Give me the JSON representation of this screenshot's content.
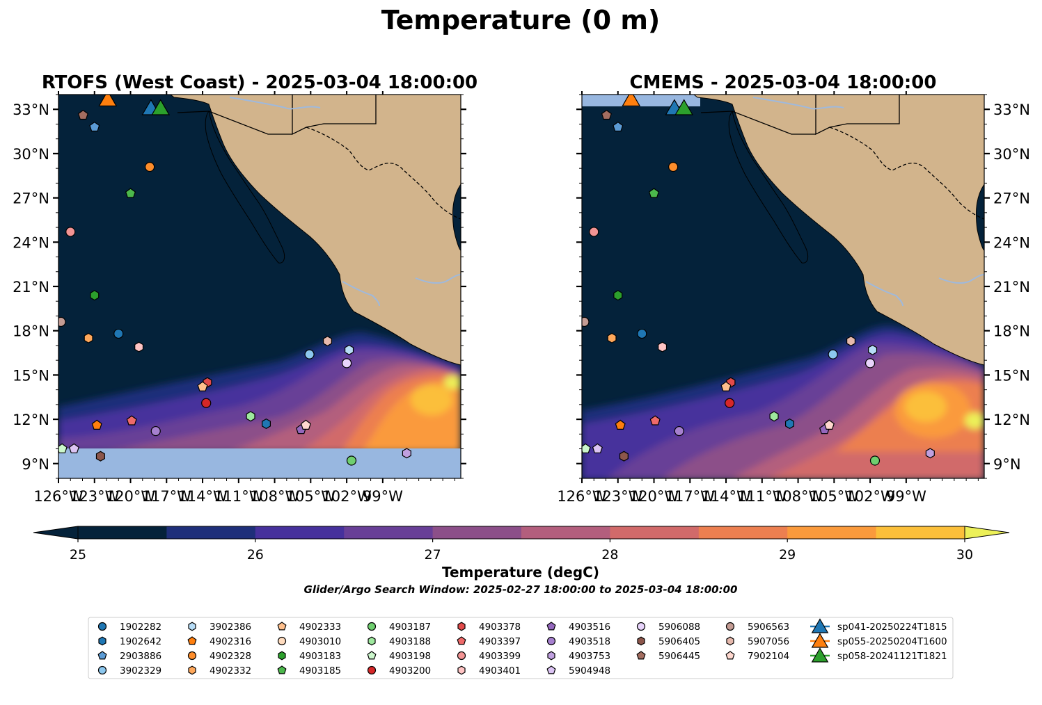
{
  "figure": {
    "suptitle": "Temperature (0 m)"
  },
  "chart_data": [
    {
      "type": "heatmap",
      "title": "RTOFS (West Coast) - 2025-03-04 18:00:00",
      "xlim": [
        -126,
        -92.5
      ],
      "ylim": [
        8,
        34
      ],
      "xticks": [
        "126°W",
        "123°W",
        "120°W",
        "117°W",
        "114°W",
        "111°W",
        "108°W",
        "105°W",
        "102°W",
        "99°W"
      ],
      "yticks": [
        "9°N",
        "12°N",
        "15°N",
        "18°N",
        "21°N",
        "24°N",
        "27°N",
        "30°N",
        "33°N"
      ],
      "ylabel_side": "left"
    },
    {
      "type": "heatmap",
      "title": "CMEMS - 2025-03-04 18:00:00",
      "xlim": [
        -126,
        -92.5
      ],
      "ylim": [
        8,
        34
      ],
      "xticks": [
        "126°W",
        "123°W",
        "120°W",
        "117°W",
        "114°W",
        "111°W",
        "108°W",
        "105°W",
        "102°W",
        "99°W"
      ],
      "yticks": [
        "9°N",
        "12°N",
        "15°N",
        "18°N",
        "21°N",
        "24°N",
        "27°N",
        "30°N",
        "33°N"
      ],
      "ylabel_side": "right"
    }
  ],
  "colorbar": {
    "label": "Temperature (degC)",
    "ticks": [
      "25",
      "26",
      "27",
      "28",
      "29",
      "30"
    ],
    "range": [
      25,
      30
    ],
    "levels": 10,
    "colors": [
      "#04223a",
      "#1e2f7a",
      "#46319c",
      "#683f97",
      "#8c4f89",
      "#b35e7d",
      "#d16a6a",
      "#ec7f50",
      "#fa9a3c",
      "#fbbf3a"
    ],
    "under_color": "#04223a",
    "over_color": "#ecf058"
  },
  "search_window": "Glider/Argo Search Window: 2025-02-27 18:00:00 to 2025-03-04 18:00:00",
  "legend": {
    "columns": [
      [
        {
          "label": "1902282",
          "color": "#1f77b4",
          "marker": "circle"
        },
        {
          "label": "1902642",
          "color": "#1f77b4",
          "marker": "hexagon"
        },
        {
          "label": "2903886",
          "color": "#5b9bd5",
          "marker": "pentagon"
        },
        {
          "label": "3902329",
          "color": "#8cc7ee",
          "marker": "circle"
        }
      ],
      [
        {
          "label": "3902386",
          "color": "#b7ddf7",
          "marker": "hexagon"
        },
        {
          "label": "4902316",
          "color": "#ff7f0e",
          "marker": "pentagon"
        },
        {
          "label": "4902328",
          "color": "#fd8d2b",
          "marker": "circle"
        },
        {
          "label": "4902332",
          "color": "#ffa85b",
          "marker": "hexagon"
        }
      ],
      [
        {
          "label": "4902333",
          "color": "#ffc08d",
          "marker": "pentagon"
        },
        {
          "label": "4903010",
          "color": "#ffdcbf",
          "marker": "circle"
        },
        {
          "label": "4903183",
          "color": "#2ca02c",
          "marker": "hexagon"
        },
        {
          "label": "4903185",
          "color": "#4cb84c",
          "marker": "pentagon"
        }
      ],
      [
        {
          "label": "4903187",
          "color": "#6fcf6f",
          "marker": "circle"
        },
        {
          "label": "4903188",
          "color": "#9ee89e",
          "marker": "hexagon"
        },
        {
          "label": "4903198",
          "color": "#ccf7cc",
          "marker": "pentagon"
        },
        {
          "label": "4903200",
          "color": "#d62728",
          "marker": "circle"
        }
      ],
      [
        {
          "label": "4903378",
          "color": "#e24b4b",
          "marker": "hexagon"
        },
        {
          "label": "4903397",
          "color": "#ef6a6a",
          "marker": "pentagon"
        },
        {
          "label": "4903399",
          "color": "#f39494",
          "marker": "circle"
        },
        {
          "label": "4903401",
          "color": "#ffc4c4",
          "marker": "hexagon"
        }
      ],
      [
        {
          "label": "4903516",
          "color": "#9467bd",
          "marker": "pentagon"
        },
        {
          "label": "4903518",
          "color": "#a680cf",
          "marker": "circle"
        },
        {
          "label": "4903753",
          "color": "#c0a0e0",
          "marker": "hexagon"
        },
        {
          "label": "5904948",
          "color": "#dcc4f4",
          "marker": "pentagon"
        }
      ],
      [
        {
          "label": "5906088",
          "color": "#e8d4fb",
          "marker": "circle"
        },
        {
          "label": "5906405",
          "color": "#8c564b",
          "marker": "hexagon"
        },
        {
          "label": "5906445",
          "color": "#a36d60",
          "marker": "pentagon"
        }
      ],
      [
        {
          "label": "5906563",
          "color": "#c49c94",
          "marker": "circle"
        },
        {
          "label": "5907056",
          "color": "#e6b9ad",
          "marker": "hexagon"
        },
        {
          "label": "7902104",
          "color": "#ffd8cf",
          "marker": "pentagon"
        }
      ],
      [
        {
          "label": "sp041-20250224T1815",
          "color": "#1f77b4",
          "marker": "triangle"
        },
        {
          "label": "sp055-20250204T1600",
          "color": "#ff7f0e",
          "marker": "triangle"
        },
        {
          "label": "sp058-20241121T1821",
          "color": "#2ca02c",
          "marker": "triangle"
        }
      ]
    ]
  },
  "argo_floats": [
    {
      "label": "5906445",
      "lon": -123.95,
      "lat": 32.6,
      "color": "#a36d60",
      "marker": "pentagon"
    },
    {
      "label": "2903886",
      "lon": -123.0,
      "lat": 31.8,
      "color": "#5b9bd5",
      "marker": "pentagon"
    },
    {
      "label": "4902328",
      "lon": -118.4,
      "lat": 29.1,
      "color": "#fd8d2b",
      "marker": "circle"
    },
    {
      "label": "4903185",
      "lon": -120.0,
      "lat": 27.3,
      "color": "#4cb84c",
      "marker": "pentagon"
    },
    {
      "label": "4903399",
      "lon": -125.0,
      "lat": 24.7,
      "color": "#f39494",
      "marker": "circle"
    },
    {
      "label": "4903183",
      "lon": -123.0,
      "lat": 20.4,
      "color": "#2ca02c",
      "marker": "hexagon"
    },
    {
      "label": "5906563",
      "lon": -125.8,
      "lat": 18.6,
      "color": "#c49c94",
      "marker": "circle"
    },
    {
      "label": "4902332",
      "lon": -123.5,
      "lat": 17.5,
      "color": "#ffa85b",
      "marker": "hexagon"
    },
    {
      "label": "1902282",
      "lon": -121.0,
      "lat": 17.8,
      "color": "#1f77b4",
      "marker": "circle"
    },
    {
      "label": "4903401",
      "lon": -119.3,
      "lat": 16.9,
      "color": "#ffc4c4",
      "marker": "hexagon"
    },
    {
      "label": "5907056",
      "lon": -103.6,
      "lat": 17.3,
      "color": "#e6b9ad",
      "marker": "hexagon"
    },
    {
      "label": "3902329",
      "lon": -105.1,
      "lat": 16.4,
      "color": "#8cc7ee",
      "marker": "circle"
    },
    {
      "label": "3902386",
      "lon": -101.8,
      "lat": 16.7,
      "color": "#b7ddf7",
      "marker": "hexagon"
    },
    {
      "label": "5906088",
      "lon": -102.0,
      "lat": 15.8,
      "color": "#e8d4fb",
      "marker": "circle"
    },
    {
      "label": "4903378",
      "lon": -113.6,
      "lat": 14.5,
      "color": "#e24b4b",
      "marker": "hexagon"
    },
    {
      "label": "4902333",
      "lon": -114.0,
      "lat": 14.2,
      "color": "#ffc08d",
      "marker": "pentagon"
    },
    {
      "label": "4903200",
      "lon": -113.7,
      "lat": 13.1,
      "color": "#d62728",
      "marker": "circle"
    },
    {
      "label": "4902316",
      "lon": -122.8,
      "lat": 11.6,
      "color": "#ff7f0e",
      "marker": "pentagon"
    },
    {
      "label": "4903397",
      "lon": -119.9,
      "lat": 11.9,
      "color": "#ef6a6a",
      "marker": "pentagon"
    },
    {
      "label": "4903518",
      "lon": -117.9,
      "lat": 11.2,
      "color": "#a680cf",
      "marker": "circle"
    },
    {
      "label": "4903188",
      "lon": -110.0,
      "lat": 12.2,
      "color": "#9ee89e",
      "marker": "hexagon"
    },
    {
      "label": "1902642",
      "lon": -108.7,
      "lat": 11.7,
      "color": "#1f77b4",
      "marker": "hexagon"
    },
    {
      "label": "4903516",
      "lon": -105.8,
      "lat": 11.3,
      "color": "#9467bd",
      "marker": "pentagon"
    },
    {
      "label": "7902104",
      "lon": -105.4,
      "lat": 11.6,
      "color": "#ffd8cf",
      "marker": "pentagon"
    },
    {
      "label": "4903198",
      "lon": -125.7,
      "lat": 10.0,
      "color": "#ccf7cc",
      "marker": "pentagon"
    },
    {
      "label": "5904948",
      "lon": -124.7,
      "lat": 10.0,
      "color": "#dcc4f4",
      "marker": "pentagon"
    },
    {
      "label": "5906405",
      "lon": -122.5,
      "lat": 9.5,
      "color": "#8c564b",
      "marker": "hexagon"
    },
    {
      "label": "4903187",
      "lon": -101.6,
      "lat": 9.2,
      "color": "#6fcf6f",
      "marker": "circle"
    },
    {
      "label": "4903753",
      "lon": -97.0,
      "lat": 9.7,
      "color": "#c0a0e0",
      "marker": "hexagon"
    }
  ],
  "gliders": [
    {
      "label": "sp041-20250224T1815",
      "lon": -118.3,
      "lat": 33.1,
      "color": "#1f77b4"
    },
    {
      "label": "sp055-20250204T1600",
      "lon": -121.9,
      "lat": 33.7,
      "color": "#ff7f0e"
    },
    {
      "label": "sp058-20241121T1821",
      "lon": -117.5,
      "lat": 33.1,
      "color": "#2ca02c"
    }
  ]
}
